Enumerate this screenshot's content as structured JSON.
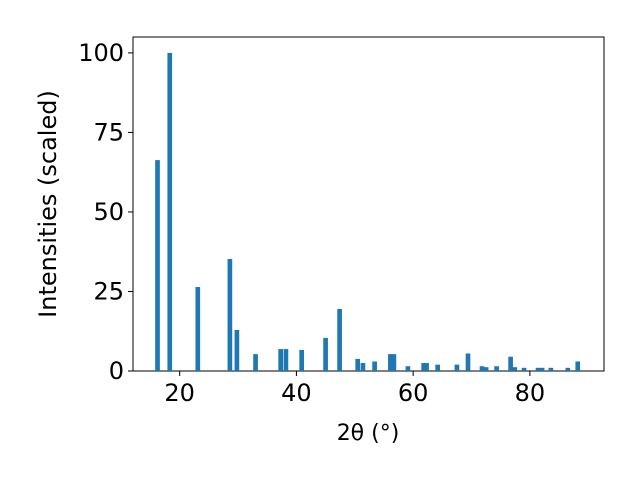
{
  "chart_data": {
    "type": "bar",
    "x_label": "2θ (°)",
    "y_label": "Intensities (scaled)",
    "color": "#1f77b4",
    "x": [
      16.2,
      18.3,
      23.1,
      28.6,
      29.8,
      33.0,
      37.3,
      38.2,
      40.9,
      45.0,
      47.4,
      50.5,
      51.4,
      53.4,
      56.1,
      56.7,
      59.1,
      61.8,
      62.3,
      64.2,
      67.5,
      69.4,
      71.8,
      72.5,
      74.3,
      76.7,
      77.4,
      79.0,
      81.4,
      82.1,
      83.6,
      86.5,
      88.2
    ],
    "values": [
      66.3,
      100,
      26.4,
      35.2,
      12.9,
      5.3,
      6.9,
      6.9,
      6.6,
      10.4,
      19.5,
      3.8,
      2.5,
      3,
      5.3,
      5.3,
      1.5,
      2.5,
      2.5,
      2,
      2,
      5.5,
      1.5,
      1.2,
      1.5,
      4.5,
      1.2,
      1,
      1,
      1,
      1,
      1,
      3
    ],
    "xlim": [
      12,
      92.7
    ],
    "ylim": [
      0,
      105
    ],
    "xticks": [
      20,
      40,
      60,
      80
    ],
    "yticks": [
      0,
      25,
      50,
      75,
      100
    ]
  }
}
